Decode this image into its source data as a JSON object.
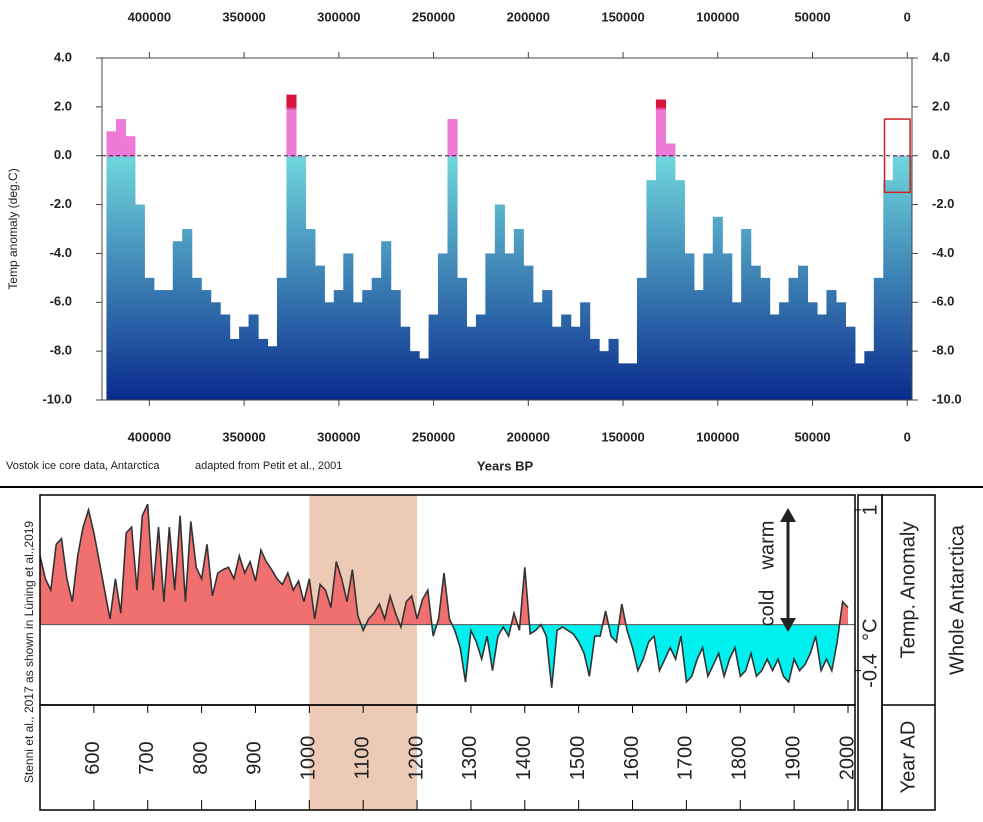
{
  "chart_data": [
    {
      "type": "bar",
      "x_label": "Years BP",
      "y_label": "Temp anomaly (deg.C)",
      "annotations": [
        "Vostok ice core data, Antarctica",
        "adapted from Petit et al., 2001"
      ],
      "xlim": [
        425000,
        -2500
      ],
      "ylim": [
        -10,
        4
      ],
      "xticks": [
        400000,
        350000,
        300000,
        250000,
        200000,
        150000,
        100000,
        50000,
        0
      ],
      "yticks": [
        {
          "value": 4,
          "label": "4.0"
        },
        {
          "value": 2,
          "label": "2.0"
        },
        {
          "value": 0,
          "label": "0.0"
        },
        {
          "value": -2,
          "label": "-2.0"
        },
        {
          "value": -4,
          "label": "-4.0"
        },
        {
          "value": -6,
          "label": "-6.0"
        },
        {
          "value": -8,
          "label": "-8.0"
        },
        {
          "value": -10,
          "label": "-10.0"
        }
      ],
      "colors": [
        "#d8143a",
        "#ee7ad8",
        "#6fd6dc",
        "#0a2b8c"
      ],
      "x": [
        420000,
        415000,
        410000,
        405000,
        400000,
        395000,
        390000,
        385000,
        380000,
        375000,
        370000,
        365000,
        360000,
        355000,
        350000,
        345000,
        340000,
        335000,
        330000,
        325000,
        320000,
        315000,
        310000,
        305000,
        300000,
        295000,
        290000,
        285000,
        280000,
        275000,
        270000,
        265000,
        260000,
        255000,
        250000,
        245000,
        240000,
        235000,
        230000,
        225000,
        220000,
        215000,
        210000,
        205000,
        200000,
        195000,
        190000,
        185000,
        180000,
        175000,
        170000,
        165000,
        160000,
        155000,
        150000,
        145000,
        140000,
        135000,
        130000,
        125000,
        120000,
        115000,
        110000,
        105000,
        100000,
        95000,
        90000,
        85000,
        80000,
        75000,
        70000,
        65000,
        60000,
        55000,
        50000,
        45000,
        40000,
        35000,
        30000,
        25000,
        20000,
        15000,
        10000,
        5000,
        0
      ],
      "values": [
        1.0,
        1.5,
        0.8,
        -2,
        -5,
        -5.5,
        -5.5,
        -3.5,
        -3,
        -5,
        -5.5,
        -6,
        -6.5,
        -7.5,
        -7,
        -6.5,
        -7.5,
        -7.8,
        -5,
        2.5,
        0,
        -3,
        -4.5,
        -6,
        -5.5,
        -4,
        -6,
        -5.5,
        -5,
        -3.5,
        -5.5,
        -7,
        -8,
        -8.3,
        -6.5,
        -4,
        1.5,
        -5,
        -7,
        -6.5,
        -4,
        -2,
        -4,
        -3,
        -4.5,
        -6,
        -5.5,
        -7,
        -6.5,
        -7,
        -6,
        -7.5,
        -8,
        -7.5,
        -8.5,
        -8.5,
        -5,
        -1,
        2.3,
        0.5,
        -1,
        -4,
        -5.5,
        -4,
        -2.5,
        -4,
        -6,
        -3,
        -4.5,
        -5,
        -6.5,
        -6,
        -5,
        -4.5,
        -6,
        -6.5,
        -5.5,
        -6,
        -7,
        -8.5,
        -8,
        -5,
        -1,
        0,
        0
      ]
    },
    {
      "type": "area",
      "x_label": "Year AD",
      "y_label": "Temp. Anomaly",
      "y_unit": "°C",
      "region_label": "Whole Antarctica",
      "source": "Stenni et al., 2017 as shown in Lüning et al.,2019",
      "annotations": [
        "warm",
        "cold"
      ],
      "shaded": [
        1000,
        1200
      ],
      "shade_color": "#eccab6",
      "colors": [
        "#f07070",
        "#00f0f0"
      ],
      "xlim": [
        500,
        2013
      ],
      "ylim": [
        -0.7,
        1.13
      ],
      "xticks": [
        600,
        700,
        800,
        900,
        1000,
        1100,
        1200,
        1300,
        1400,
        1500,
        1600,
        1700,
        1800,
        1900,
        2000
      ],
      "yticks": [
        -0.4,
        1
      ],
      "x": [
        500,
        510,
        520,
        530,
        540,
        550,
        560,
        570,
        580,
        590,
        600,
        610,
        620,
        630,
        640,
        650,
        660,
        670,
        680,
        690,
        700,
        710,
        720,
        730,
        740,
        750,
        760,
        770,
        780,
        790,
        800,
        810,
        820,
        830,
        840,
        850,
        860,
        870,
        880,
        890,
        900,
        910,
        920,
        930,
        940,
        950,
        960,
        970,
        980,
        990,
        1000,
        1010,
        1020,
        1030,
        1040,
        1050,
        1060,
        1070,
        1080,
        1090,
        1100,
        1110,
        1120,
        1130,
        1140,
        1150,
        1160,
        1170,
        1180,
        1190,
        1200,
        1210,
        1220,
        1230,
        1240,
        1250,
        1260,
        1270,
        1280,
        1290,
        1300,
        1310,
        1320,
        1330,
        1340,
        1350,
        1360,
        1370,
        1380,
        1390,
        1400,
        1410,
        1420,
        1430,
        1440,
        1450,
        1460,
        1470,
        1480,
        1490,
        1500,
        1510,
        1520,
        1530,
        1540,
        1550,
        1560,
        1570,
        1580,
        1590,
        1600,
        1610,
        1620,
        1630,
        1640,
        1650,
        1660,
        1670,
        1680,
        1690,
        1700,
        1710,
        1720,
        1730,
        1740,
        1750,
        1760,
        1770,
        1780,
        1790,
        1800,
        1810,
        1820,
        1830,
        1840,
        1850,
        1860,
        1870,
        1880,
        1890,
        1900,
        1910,
        1920,
        1930,
        1940,
        1950,
        1960,
        1970,
        1980,
        1990,
        2000
      ],
      "values": [
        0.6,
        0.4,
        0.3,
        0.7,
        0.75,
        0.4,
        0.2,
        0.6,
        0.85,
        1.0,
        0.8,
        0.55,
        0.3,
        0.05,
        0.4,
        0.1,
        0.8,
        0.85,
        0.3,
        0.95,
        1.05,
        0.3,
        0.85,
        0.2,
        0.85,
        0.3,
        0.95,
        0.2,
        0.9,
        0.5,
        0.4,
        0.7,
        0.25,
        0.45,
        0.48,
        0.5,
        0.4,
        0.6,
        0.45,
        0.55,
        0.38,
        0.65,
        0.55,
        0.48,
        0.4,
        0.35,
        0.45,
        0.3,
        0.38,
        0.2,
        0.4,
        0.05,
        0.35,
        0.3,
        0.15,
        0.55,
        0.4,
        0.2,
        0.48,
        0.08,
        -0.05,
        0.05,
        0.1,
        0.18,
        0.05,
        0.25,
        0.1,
        -0.02,
        0.2,
        0.25,
        0.05,
        0.22,
        0.3,
        -0.1,
        0.05,
        0.45,
        0.05,
        -0.05,
        -0.2,
        -0.5,
        -0.05,
        -0.15,
        -0.3,
        -0.1,
        -0.4,
        -0.1,
        -0.02,
        -0.1,
        0.1,
        -0.05,
        0.5,
        -0.08,
        -0.05,
        0,
        -0.1,
        -0.55,
        -0.05,
        -0.02,
        -0.05,
        -0.08,
        -0.15,
        -0.25,
        -0.45,
        -0.1,
        -0.1,
        0.12,
        -0.1,
        -0.15,
        0.18,
        -0.05,
        -0.2,
        -0.4,
        -0.3,
        -0.15,
        -0.1,
        -0.4,
        -0.3,
        -0.2,
        -0.3,
        -0.1,
        -0.5,
        -0.45,
        -0.3,
        -0.2,
        -0.45,
        -0.35,
        -0.25,
        -0.45,
        -0.3,
        -0.2,
        -0.45,
        -0.4,
        -0.25,
        -0.45,
        -0.4,
        -0.3,
        -0.4,
        -0.3,
        -0.45,
        -0.5,
        -0.3,
        -0.4,
        -0.35,
        -0.25,
        -0.1,
        -0.4,
        -0.3,
        -0.4,
        -0.15,
        0.2,
        0.15
      ]
    }
  ]
}
